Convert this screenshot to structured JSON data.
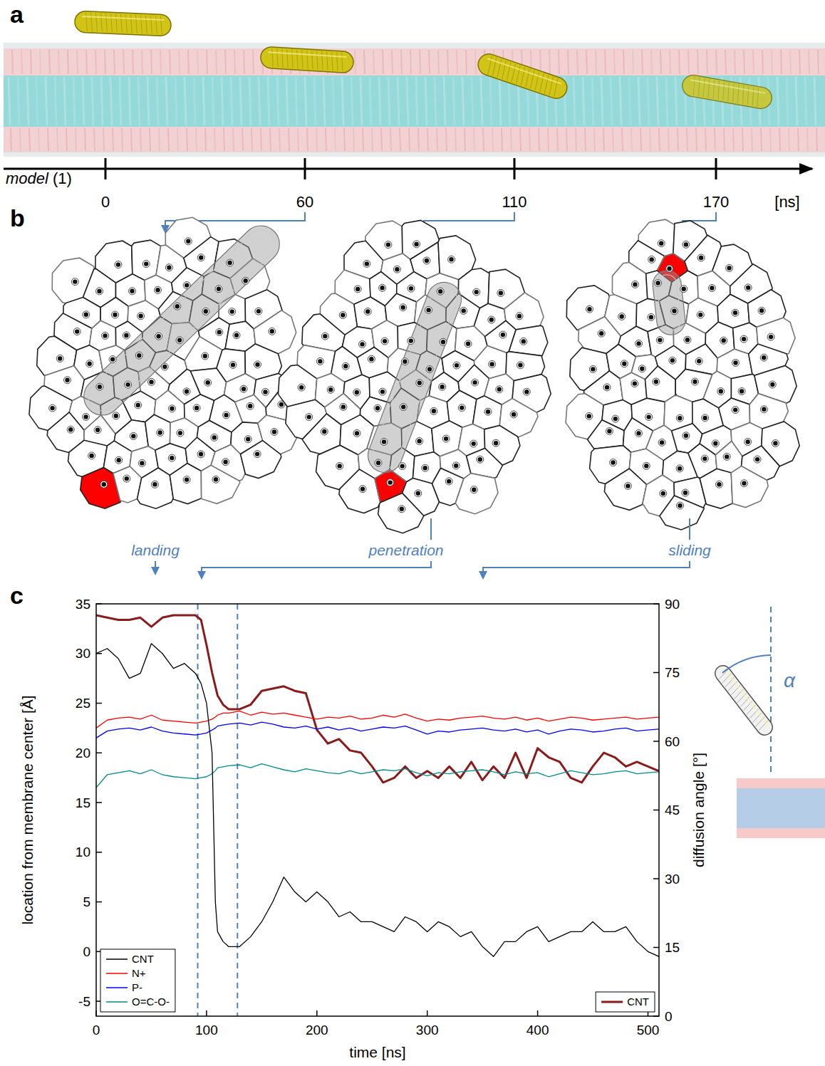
{
  "figure": {
    "panel_labels": [
      "a",
      "b",
      "c"
    ],
    "timeline": {
      "label": "model (1)",
      "ticks": [
        0,
        60,
        110,
        170
      ],
      "unit": "[ns]"
    },
    "stages": [
      "landing",
      "penetration",
      "sliding"
    ],
    "angle_symbol": "α"
  },
  "chart_data": {
    "type": "line",
    "x_label": "time [ns]",
    "y_label": "location from membrane center [Å]",
    "y2_label": "diffusion angle [°]",
    "x": [
      0,
      10,
      20,
      30,
      40,
      50,
      60,
      70,
      80,
      90,
      95,
      100,
      105,
      108,
      110,
      115,
      120,
      130,
      140,
      150,
      160,
      170,
      180,
      190,
      200,
      210,
      220,
      230,
      240,
      250,
      260,
      270,
      280,
      290,
      300,
      310,
      320,
      330,
      340,
      350,
      360,
      370,
      380,
      390,
      400,
      410,
      420,
      430,
      440,
      450,
      460,
      470,
      480,
      490,
      500,
      510
    ],
    "series": [
      {
        "name": "CNT",
        "color": "#000000",
        "values": [
          30,
          30.5,
          29.5,
          27.5,
          28,
          31,
          30,
          28.5,
          29,
          28,
          27,
          25,
          20,
          5,
          2,
          1,
          0.5,
          0.5,
          1.5,
          3,
          5,
          7.5,
          6,
          5,
          6,
          5,
          3.5,
          4,
          3,
          3,
          2.5,
          2,
          3.5,
          3,
          2,
          3,
          2.5,
          1.5,
          2,
          0.5,
          -0.5,
          1,
          1,
          2,
          2.5,
          1,
          1.5,
          2,
          2,
          3,
          2,
          2,
          2.5,
          1,
          0,
          -0.5
        ]
      },
      {
        "name": "N+",
        "color": "#ff0000",
        "values": [
          22.5,
          23.3,
          23.5,
          23.6,
          23.4,
          23.8,
          23.3,
          23.2,
          23.1,
          23.0,
          23.1,
          23.2,
          23.4,
          23.6,
          23.8,
          24.0,
          24.0,
          24.2,
          23.8,
          24.1,
          23.9,
          24.0,
          23.8,
          23.6,
          23.4,
          23.6,
          23.5,
          23.7,
          23.4,
          23.5,
          23.8,
          23.6,
          23.9,
          23.5,
          23.2,
          23.4,
          23.3,
          23.5,
          23.6,
          23.7,
          23.5,
          23.4,
          23.6,
          23.3,
          23.5,
          23.2,
          23.4,
          23.6,
          23.5,
          23.3,
          23.4,
          23.5,
          23.6,
          23.4,
          23.5,
          23.6
        ]
      },
      {
        "name": "P-",
        "color": "#0000ff",
        "values": [
          21.5,
          22.2,
          22.4,
          22.5,
          22.3,
          22.6,
          22.2,
          22.0,
          21.9,
          21.8,
          21.9,
          22.0,
          22.3,
          22.5,
          22.7,
          22.8,
          22.9,
          23.0,
          22.8,
          23.1,
          22.9,
          22.6,
          22.5,
          22.7,
          22.4,
          22.6,
          22.3,
          22.5,
          22.2,
          22.4,
          22.6,
          22.5,
          22.7,
          22.3,
          21.9,
          22.2,
          22.1,
          22.3,
          22.4,
          22.5,
          22.3,
          22.2,
          22.4,
          22.1,
          22.3,
          21.9,
          22.2,
          22.4,
          22.3,
          22.1,
          22.2,
          22.4,
          22.5,
          22.2,
          22.3,
          22.4
        ]
      },
      {
        "name": "O=C-O-",
        "color": "#008b8b",
        "values": [
          16.5,
          17.8,
          18.0,
          18.2,
          17.9,
          18.3,
          17.8,
          17.6,
          17.5,
          17.4,
          17.5,
          17.6,
          17.9,
          18.2,
          18.5,
          18.6,
          18.7,
          18.8,
          18.5,
          18.9,
          18.6,
          18.3,
          18.1,
          18.4,
          18.2,
          18.0,
          17.9,
          18.2,
          17.9,
          18.1,
          18.3,
          18.2,
          18.4,
          18.0,
          17.7,
          18.0,
          17.9,
          18.1,
          18.2,
          18.3,
          18.1,
          17.8,
          18.1,
          17.9,
          18.0,
          17.6,
          17.9,
          18.2,
          18.0,
          17.8,
          17.9,
          18.1,
          18.2,
          17.9,
          18.0,
          18.1
        ]
      },
      {
        "name": "CNT",
        "color": "#8b1a1a",
        "axis": "y2",
        "values": [
          87.5,
          87,
          86.5,
          86.5,
          87,
          85,
          87,
          87.5,
          87.5,
          87.5,
          86.5,
          81,
          75,
          72,
          70,
          68,
          67,
          67,
          68,
          71,
          71.5,
          72,
          71,
          70.5,
          62.5,
          59.5,
          60.5,
          58,
          57.5,
          54.5,
          51,
          52,
          54.5,
          52,
          53.5,
          52,
          54.5,
          52,
          55.5,
          51.5,
          54.5,
          52,
          57.5,
          52,
          58.5,
          56.5,
          55.5,
          52,
          51,
          54.5,
          57.5,
          56.5,
          54.5,
          55.5,
          54.5,
          53.5
        ]
      }
    ],
    "xlim": [
      0,
      510
    ],
    "xticks": [
      0,
      100,
      200,
      300,
      400,
      500
    ],
    "ylim": [
      -6.5,
      35
    ],
    "yticks": [
      -5,
      0,
      5,
      10,
      15,
      20,
      25,
      30,
      35
    ],
    "y2lim": [
      0,
      90
    ],
    "y2ticks": [
      0,
      15,
      30,
      45,
      60,
      75,
      90
    ],
    "vlines": [
      92,
      128
    ],
    "legend": "lower left",
    "grid": false
  }
}
